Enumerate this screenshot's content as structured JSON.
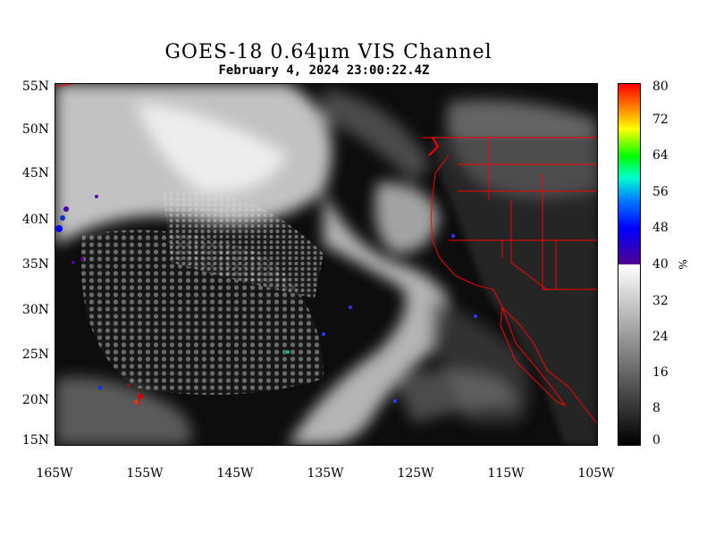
{
  "title": "GOES-18  0.64μm VIS Channel",
  "subtitle": "February  4,  2024 23:00:22.4Z",
  "y_axis_labels": [
    "55N",
    "50N",
    "45N",
    "40N",
    "35N",
    "30N",
    "25N",
    "20N",
    "15N"
  ],
  "x_axis_labels": [
    "165W",
    "155W",
    "145W",
    "135W",
    "125W",
    "115W",
    "105W"
  ],
  "colorbar": {
    "labels": [
      "80",
      "72",
      "64",
      "56",
      "48",
      "40",
      "32",
      "24",
      "16",
      "8",
      "0"
    ],
    "units": "%",
    "colors": {
      "high": "#ff0000",
      "mid_high": "#00ff00",
      "low_color": "#500090",
      "gray_top": "#ffffff",
      "gray_bottom": "#000000"
    }
  },
  "map": {
    "boundary_color": "#ff0000",
    "background_color": "#0a0a0a"
  }
}
